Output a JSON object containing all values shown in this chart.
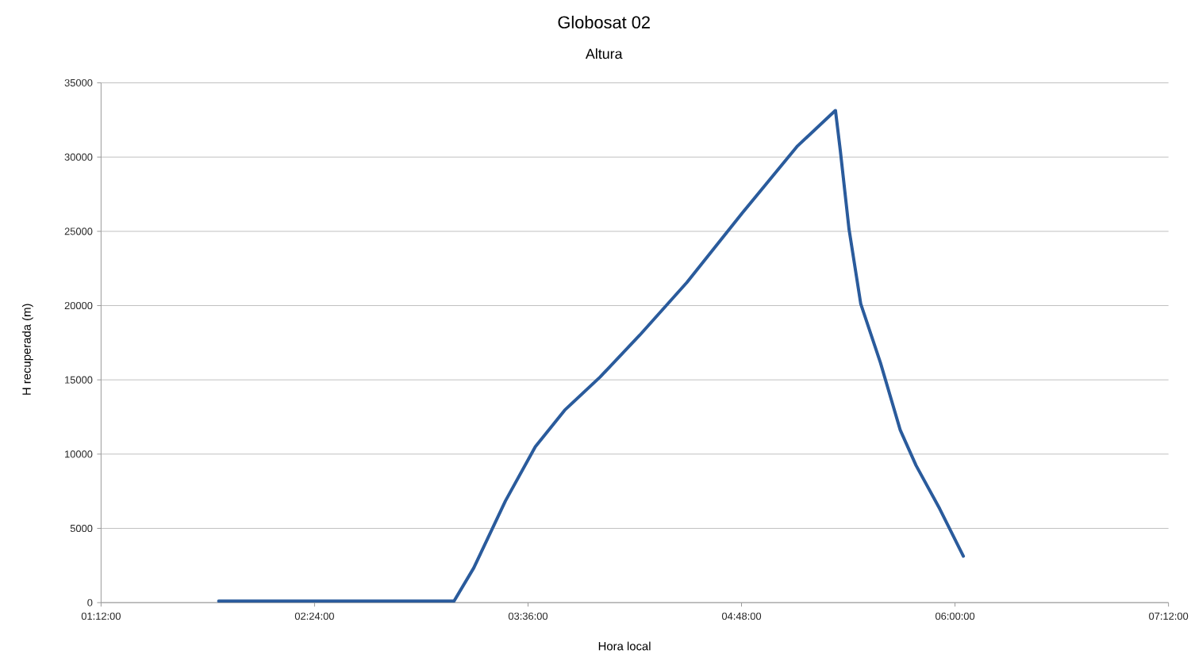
{
  "chart_data": {
    "type": "line",
    "title": "Globosat 02",
    "subtitle": "Altura",
    "xlabel": "Hora local",
    "ylabel": "H  recuperada (m)",
    "x": [
      1.861,
      3.184,
      3.295,
      3.473,
      3.641,
      3.806,
      4.005,
      4.227,
      4.493,
      4.804,
      5.115,
      5.328,
      5.355,
      5.404,
      5.47,
      5.581,
      5.692,
      5.781,
      5.914,
      6.047
    ],
    "series": [
      {
        "color": "#2a5b9c",
        "values": [
          100,
          100,
          2340,
          6850,
          10500,
          12960,
          15190,
          18000,
          21560,
          26230,
          30750,
          33140,
          30480,
          25170,
          20130,
          16150,
          11630,
          9240,
          6320,
          3130
        ]
      }
    ],
    "xlim": [
      1.2,
      7.2
    ],
    "xticks": [
      {
        "value": 1.2,
        "label": "01:12:00"
      },
      {
        "value": 2.4,
        "label": "02:24:00"
      },
      {
        "value": 3.6,
        "label": "03:36:00"
      },
      {
        "value": 4.8,
        "label": "04:48:00"
      },
      {
        "value": 6.0,
        "label": "06:00:00"
      },
      {
        "value": 7.2,
        "label": "07:12:00"
      }
    ],
    "ylim": [
      0,
      35000
    ],
    "yticks": [
      0,
      5000,
      10000,
      15000,
      20000,
      25000,
      30000,
      35000
    ],
    "grid": "y",
    "marker": "none",
    "line_style": "solid"
  }
}
